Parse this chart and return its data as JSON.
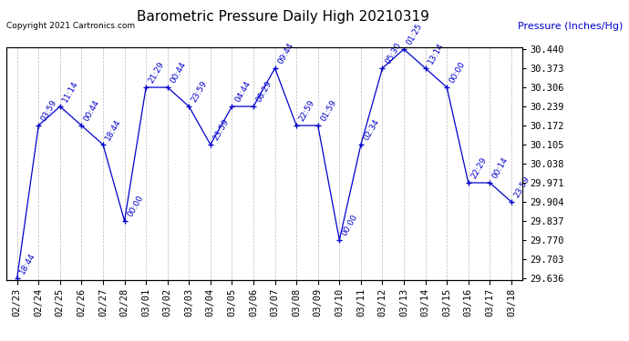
{
  "title": "Barometric Pressure Daily High 20210319",
  "ylabel": "Pressure (Inches/Hg)",
  "copyright": "Copyright 2021 Cartronics.com",
  "line_color": "#0000cc",
  "background_color": "#ffffff",
  "grid_color": "#b0b0b0",
  "text_color": "#0000cc",
  "ylim_low": 29.636,
  "ylim_high": 30.44,
  "yticks": [
    29.636,
    29.703,
    29.77,
    29.837,
    29.904,
    29.971,
    30.038,
    30.105,
    30.172,
    30.239,
    30.306,
    30.373,
    30.44
  ],
  "dates": [
    "02/23",
    "02/24",
    "02/25",
    "02/26",
    "02/27",
    "02/28",
    "03/01",
    "03/02",
    "03/03",
    "03/04",
    "03/05",
    "03/06",
    "03/07",
    "03/08",
    "03/09",
    "03/10",
    "03/11",
    "03/12",
    "03/13",
    "03/14",
    "03/15",
    "03/16",
    "03/17",
    "03/18"
  ],
  "values": [
    29.636,
    30.172,
    30.239,
    30.172,
    30.105,
    29.837,
    30.306,
    30.306,
    30.239,
    30.105,
    30.239,
    30.239,
    30.373,
    30.172,
    30.172,
    29.77,
    30.105,
    30.373,
    30.44,
    30.373,
    30.306,
    29.971,
    29.971,
    29.904
  ],
  "time_labels": [
    "18:44",
    "03:59",
    "11:14",
    "00:44",
    "18:44",
    "00:00",
    "21:29",
    "00:44",
    "23:59",
    "23:59",
    "04:44",
    "08:29",
    "09:44",
    "22:59",
    "01:59",
    "00:00",
    "02:34",
    "05:30",
    "01:25",
    "13:14",
    "00:00",
    "22:29",
    "00:14",
    "23:59"
  ],
  "font_size_title": 11,
  "font_size_labels": 6.5,
  "font_size_ticks": 7.5,
  "font_size_copyright": 6.5,
  "font_size_ylabel": 8
}
